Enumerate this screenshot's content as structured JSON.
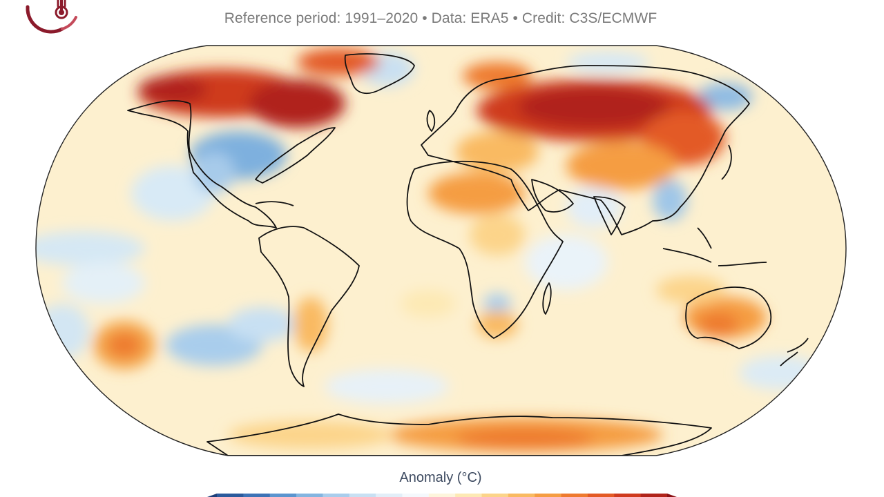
{
  "header": {
    "title": "",
    "subtitle": "Reference period: 1991–2020 • Data: ERA5 • Credit: C3S/ECMWF"
  },
  "legend": {
    "title": "Anomaly (°C)",
    "colors": [
      "#1d3f7a",
      "#2b5a9c",
      "#3d73b6",
      "#5b95cf",
      "#84b5e0",
      "#a9cdec",
      "#c8e0f3",
      "#e2eef8",
      "#f4f8fc",
      "#fdf5dc",
      "#fde9b4",
      "#fcd48a",
      "#f9ba62",
      "#f59d43",
      "#ee7a2f",
      "#e35a25",
      "#cf3b1f",
      "#b0231a",
      "#8b1114"
    ]
  },
  "colors": {
    "ocean_base": "#fdf0cf",
    "land_outline": "#111111",
    "brand": "#8b1a2b"
  }
}
